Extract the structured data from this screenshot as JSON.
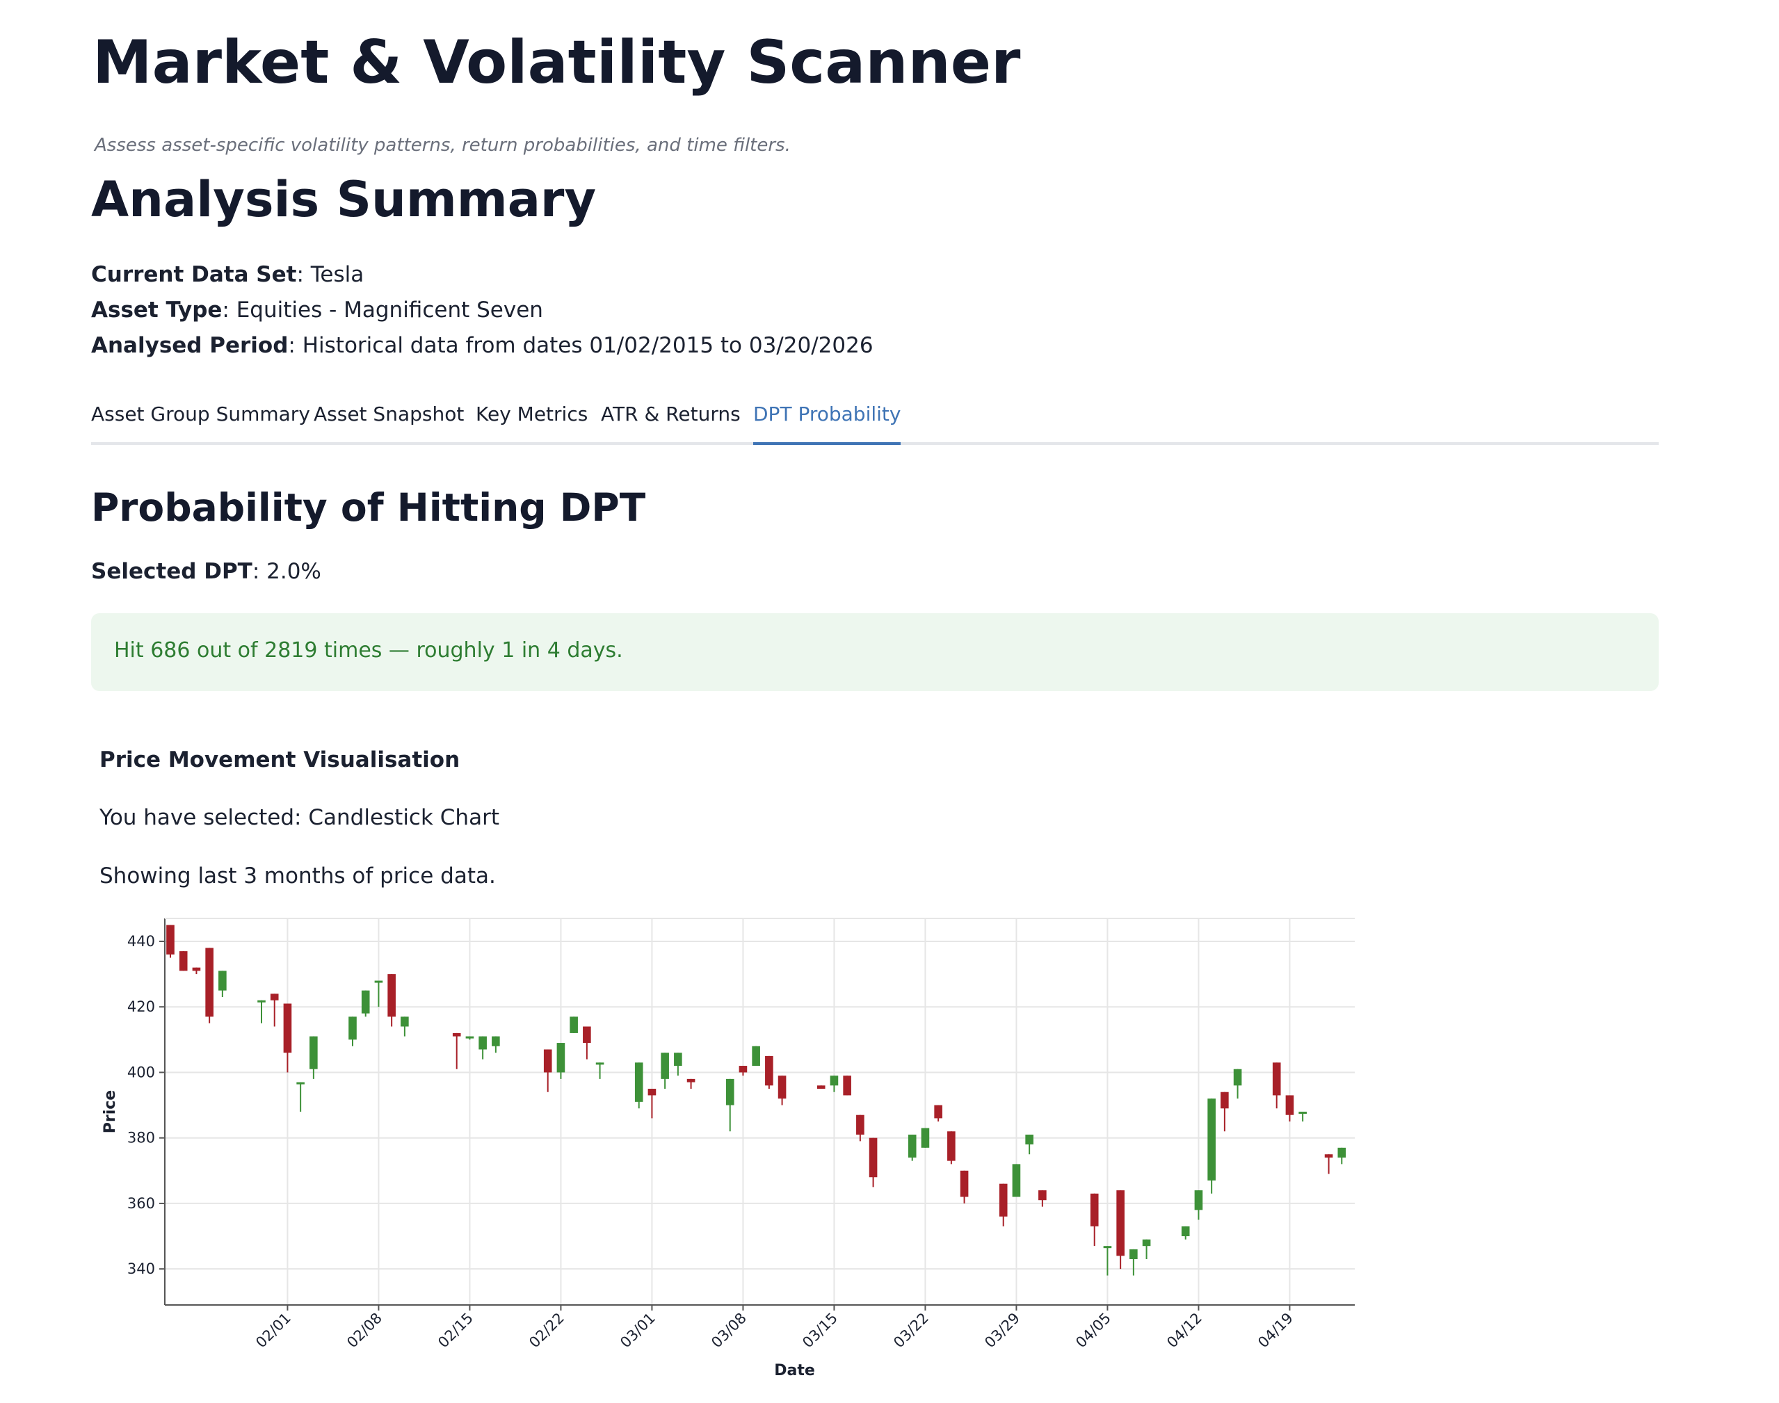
{
  "app": {
    "title": "Market & Volatility Scanner",
    "subtitle": "Assess asset-specific volatility patterns, return probabilities, and time filters."
  },
  "summary": {
    "heading": "Analysis Summary",
    "dataset_label": "Current Data Set",
    "dataset_value": ": Tesla",
    "asset_type_label": "Asset Type",
    "asset_type_value": ": Equities - Magnificent Seven",
    "period_label": "Analysed Period",
    "period_value": ": Historical data from dates 01/02/2015 to 03/20/2026"
  },
  "tabs": [
    {
      "label": "Asset Group Summary",
      "active": false
    },
    {
      "label": "Asset Snapshot",
      "active": false
    },
    {
      "label": "Key Metrics",
      "active": false
    },
    {
      "label": "ATR & Returns",
      "active": false
    },
    {
      "label": "DPT Probability",
      "active": true
    }
  ],
  "dpt": {
    "heading": "Probability of Hitting DPT",
    "selected_label": "Selected DPT",
    "selected_value": ": 2.0%",
    "alert_text": "Hit 686 out of 2819 times — roughly 1 in 4 days.",
    "alert_bg": "#edf7ee",
    "alert_color": "#2e7d32"
  },
  "visualisation": {
    "heading": "Price Movement Visualisation",
    "selected_text": "You have selected: Candlestick Chart",
    "range_text": "Showing last 3 months of price data."
  },
  "colors": {
    "accent": "#3f74b5",
    "up": "#3d9138",
    "down": "#a82028"
  },
  "chart_data": {
    "type": "candlestick",
    "xlabel": "Date",
    "ylabel": "Price",
    "ylim": [
      329,
      447
    ],
    "x_range": [
      "2026-01-23",
      "2026-04-24"
    ],
    "x_ticks": [
      "02/01",
      "02/08",
      "02/15",
      "02/22",
      "03/01",
      "03/08",
      "03/15",
      "03/22",
      "03/29",
      "04/05",
      "04/12",
      "04/19"
    ],
    "y_ticks": [
      340,
      360,
      380,
      400,
      420,
      440
    ],
    "grid": true,
    "candles": [
      {
        "date": "2026-01-23",
        "open": 445,
        "high": 445,
        "low": 435,
        "close": 436
      },
      {
        "date": "2026-01-24",
        "open": 437,
        "high": 437,
        "low": 431,
        "close": 431
      },
      {
        "date": "2026-01-25",
        "open": 432,
        "high": 432,
        "low": 430,
        "close": 431
      },
      {
        "date": "2026-01-26",
        "open": 438,
        "high": 438,
        "low": 415,
        "close": 417
      },
      {
        "date": "2026-01-27",
        "open": 425,
        "high": 431,
        "low": 423,
        "close": 431
      },
      {
        "date": "2026-01-30",
        "open": 422,
        "high": 422,
        "low": 415,
        "close": 422
      },
      {
        "date": "2026-01-31",
        "open": 424,
        "high": 424,
        "low": 414,
        "close": 422
      },
      {
        "date": "2026-02-01",
        "open": 421,
        "high": 421,
        "low": 400,
        "close": 406
      },
      {
        "date": "2026-02-02",
        "open": 397,
        "high": 397,
        "low": 388,
        "close": 397
      },
      {
        "date": "2026-02-03",
        "open": 401,
        "high": 411,
        "low": 398,
        "close": 411
      },
      {
        "date": "2026-02-06",
        "open": 410,
        "high": 417,
        "low": 408,
        "close": 417
      },
      {
        "date": "2026-02-07",
        "open": 418,
        "high": 425,
        "low": 417,
        "close": 425
      },
      {
        "date": "2026-02-08",
        "open": 428,
        "high": 428,
        "low": 420,
        "close": 428
      },
      {
        "date": "2026-02-09",
        "open": 430,
        "high": 430,
        "low": 414,
        "close": 417
      },
      {
        "date": "2026-02-10",
        "open": 414,
        "high": 417,
        "low": 411,
        "close": 417
      },
      {
        "date": "2026-02-14",
        "open": 412,
        "high": 412,
        "low": 401,
        "close": 411
      },
      {
        "date": "2026-02-15",
        "open": 411,
        "high": 411,
        "low": 410,
        "close": 411
      },
      {
        "date": "2026-02-16",
        "open": 407,
        "high": 411,
        "low": 404,
        "close": 411
      },
      {
        "date": "2026-02-17",
        "open": 408,
        "high": 411,
        "low": 406,
        "close": 411
      },
      {
        "date": "2026-02-21",
        "open": 407,
        "high": 407,
        "low": 394,
        "close": 400
      },
      {
        "date": "2026-02-22",
        "open": 400,
        "high": 409,
        "low": 398,
        "close": 409
      },
      {
        "date": "2026-02-23",
        "open": 412,
        "high": 417,
        "low": 412,
        "close": 417
      },
      {
        "date": "2026-02-24",
        "open": 414,
        "high": 414,
        "low": 404,
        "close": 409
      },
      {
        "date": "2026-02-25",
        "open": 403,
        "high": 403,
        "low": 398,
        "close": 403
      },
      {
        "date": "2026-02-28",
        "open": 391,
        "high": 403,
        "low": 389,
        "close": 403
      },
      {
        "date": "2026-03-01",
        "open": 395,
        "high": 395,
        "low": 386,
        "close": 393
      },
      {
        "date": "2026-03-02",
        "open": 398,
        "high": 406,
        "low": 395,
        "close": 406
      },
      {
        "date": "2026-03-03",
        "open": 402,
        "high": 406,
        "low": 399,
        "close": 406
      },
      {
        "date": "2026-03-04",
        "open": 398,
        "high": 398,
        "low": 395,
        "close": 397
      },
      {
        "date": "2026-03-07",
        "open": 390,
        "high": 398,
        "low": 382,
        "close": 398
      },
      {
        "date": "2026-03-08",
        "open": 402,
        "high": 402,
        "low": 399,
        "close": 400
      },
      {
        "date": "2026-03-09",
        "open": 402,
        "high": 408,
        "low": 402,
        "close": 408
      },
      {
        "date": "2026-03-10",
        "open": 405,
        "high": 405,
        "low": 395,
        "close": 396
      },
      {
        "date": "2026-03-11",
        "open": 399,
        "high": 399,
        "low": 390,
        "close": 392
      },
      {
        "date": "2026-03-14",
        "open": 396,
        "high": 396,
        "low": 395,
        "close": 395
      },
      {
        "date": "2026-03-15",
        "open": 396,
        "high": 399,
        "low": 394,
        "close": 399
      },
      {
        "date": "2026-03-16",
        "open": 399,
        "high": 399,
        "low": 393,
        "close": 393
      },
      {
        "date": "2026-03-17",
        "open": 387,
        "high": 387,
        "low": 379,
        "close": 381
      },
      {
        "date": "2026-03-18",
        "open": 380,
        "high": 380,
        "low": 365,
        "close": 368
      },
      {
        "date": "2026-03-21",
        "open": 374,
        "high": 381,
        "low": 373,
        "close": 381
      },
      {
        "date": "2026-03-22",
        "open": 377,
        "high": 383,
        "low": 377,
        "close": 383
      },
      {
        "date": "2026-03-23",
        "open": 390,
        "high": 390,
        "low": 385,
        "close": 386
      },
      {
        "date": "2026-03-24",
        "open": 382,
        "high": 382,
        "low": 372,
        "close": 373
      },
      {
        "date": "2026-03-25",
        "open": 370,
        "high": 370,
        "low": 360,
        "close": 362
      },
      {
        "date": "2026-03-28",
        "open": 366,
        "high": 366,
        "low": 353,
        "close": 356
      },
      {
        "date": "2026-03-29",
        "open": 362,
        "high": 372,
        "low": 362,
        "close": 372
      },
      {
        "date": "2026-03-30",
        "open": 378,
        "high": 381,
        "low": 375,
        "close": 381
      },
      {
        "date": "2026-03-31",
        "open": 364,
        "high": 364,
        "low": 359,
        "close": 361
      },
      {
        "date": "2026-04-04",
        "open": 363,
        "high": 363,
        "low": 347,
        "close": 353
      },
      {
        "date": "2026-04-05",
        "open": 347,
        "high": 347,
        "low": 338,
        "close": 347
      },
      {
        "date": "2026-04-06",
        "open": 364,
        "high": 364,
        "low": 340,
        "close": 344
      },
      {
        "date": "2026-04-07",
        "open": 343,
        "high": 346,
        "low": 338,
        "close": 346
      },
      {
        "date": "2026-04-08",
        "open": 347,
        "high": 349,
        "low": 343,
        "close": 349
      },
      {
        "date": "2026-04-11",
        "open": 350,
        "high": 353,
        "low": 349,
        "close": 353
      },
      {
        "date": "2026-04-12",
        "open": 358,
        "high": 364,
        "low": 355,
        "close": 364
      },
      {
        "date": "2026-04-13",
        "open": 367,
        "high": 392,
        "low": 363,
        "close": 392
      },
      {
        "date": "2026-04-14",
        "open": 394,
        "high": 394,
        "low": 382,
        "close": 389
      },
      {
        "date": "2026-04-15",
        "open": 396,
        "high": 401,
        "low": 392,
        "close": 401
      },
      {
        "date": "2026-04-18",
        "open": 403,
        "high": 403,
        "low": 389,
        "close": 393
      },
      {
        "date": "2026-04-19",
        "open": 393,
        "high": 393,
        "low": 385,
        "close": 387
      },
      {
        "date": "2026-04-20",
        "open": 388,
        "high": 388,
        "low": 385,
        "close": 388
      },
      {
        "date": "2026-04-22",
        "open": 375,
        "high": 375,
        "low": 369,
        "close": 374
      },
      {
        "date": "2026-04-23",
        "open": 374,
        "high": 377,
        "low": 372,
        "close": 377
      }
    ]
  }
}
